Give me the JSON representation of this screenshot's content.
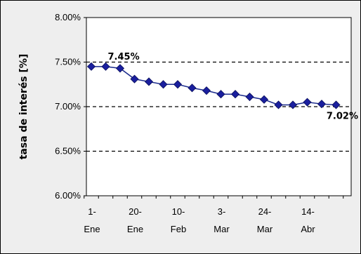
{
  "chart_data": {
    "type": "line",
    "title": "",
    "xlabel": "",
    "ylabel": "tasa de interés [%]",
    "ylim": [
      6.0,
      8.0
    ],
    "y_ticks": [
      "6.00%",
      "6.50%",
      "7.00%",
      "7.50%",
      "8.00%"
    ],
    "y_tick_values": [
      6.0,
      6.5,
      7.0,
      7.5,
      8.0
    ],
    "dashed_gridlines_at": [
      6.5,
      7.0,
      7.5
    ],
    "x_tick_labels": [
      {
        "line1": "1-",
        "line2": "Ene"
      },
      {
        "line1": "20-",
        "line2": "Ene"
      },
      {
        "line1": "10-",
        "line2": "Feb"
      },
      {
        "line1": "3-",
        "line2": "Mar"
      },
      {
        "line1": "24-",
        "line2": "Mar"
      },
      {
        "line1": "14-",
        "line2": "Abr"
      }
    ],
    "series": [
      {
        "values": [
          7.45,
          7.45,
          7.43,
          7.31,
          7.28,
          7.25,
          7.25,
          7.21,
          7.18,
          7.14,
          7.14,
          7.11,
          7.08,
          7.02,
          7.02,
          7.05,
          7.03,
          7.02
        ]
      }
    ],
    "annotations": [
      {
        "text": "7.45%",
        "point_index": 1
      },
      {
        "text": "7.02%",
        "point_index": 17
      }
    ],
    "colors": {
      "line": "#1a2a8c",
      "marker": "#1a1f9e",
      "plot_background": "#ffffff",
      "chart_background": "#eeeeee"
    }
  }
}
